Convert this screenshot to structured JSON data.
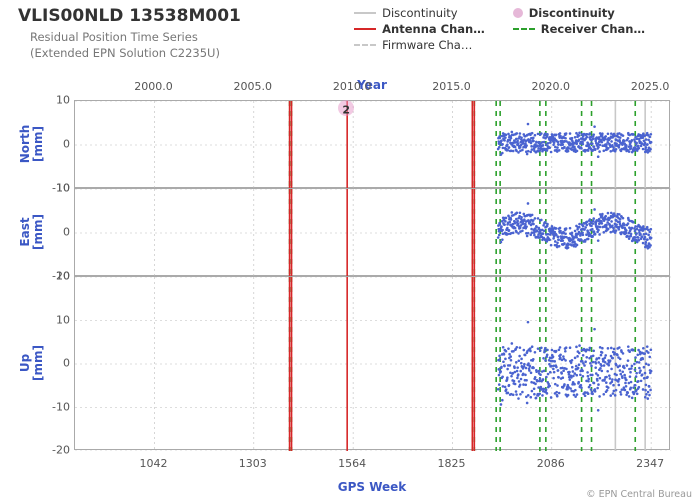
{
  "title": "VLIS00NLD 13538M001",
  "subtitle1": "Residual Position Time Series",
  "subtitle2": "(Extended EPN Solution C2235U)",
  "title_fontsize": 17,
  "title_color": "#333333",
  "subtitle_color": "#777777",
  "legend": {
    "discontinuity_line": {
      "label": "Discontinuity",
      "color": "#c8c8c8",
      "style": "solid",
      "bold": false
    },
    "antenna_change": {
      "label": "Antenna Chan…",
      "color": "#d62728",
      "style": "solid",
      "bold": true
    },
    "firmware_change": {
      "label": "Firmware Cha…",
      "color": "#c8c8c8",
      "style": "dashed",
      "bold": false
    },
    "discontinuity_dot": {
      "label": "Discontinuity",
      "color": "#e6b8d8",
      "style": "dot",
      "bold": true
    },
    "receiver_change": {
      "label": "Receiver Chan…",
      "color": "#2ca02c",
      "style": "dashed",
      "bold": true
    }
  },
  "top_axis": {
    "label": "Year",
    "ticks": [
      "2000.0",
      "2005.0",
      "2010.0",
      "2015.0",
      "2020.0",
      "2025.0"
    ],
    "min": 1996.0,
    "max": 2026.0
  },
  "bottom_axis": {
    "label": "GPS Week",
    "ticks": [
      "1042",
      "1303",
      "1564",
      "1825",
      "2086",
      "2347"
    ],
    "positions": [
      2000.0,
      2005.0,
      2010.0,
      2015.0,
      2020.0,
      2025.0
    ]
  },
  "panels": {
    "north": {
      "label": "North\n[mm]",
      "ylim": [
        -10,
        10
      ],
      "yticks": [
        -10,
        0,
        10
      ]
    },
    "east": {
      "label": "East\n[mm]",
      "ylim": [
        -10,
        10
      ],
      "yticks": [
        -10,
        0,
        10
      ]
    },
    "up": {
      "label": "Up\n[mm]",
      "ylim": [
        -20,
        20
      ],
      "yticks": [
        -20,
        -10,
        0,
        10,
        20
      ]
    }
  },
  "events": {
    "antenna_changes": [
      2006.8,
      2006.9,
      2009.7,
      2016.0,
      2016.1
    ],
    "receiver_changes": [
      2006.8,
      2006.9,
      2016.0,
      2016.1,
      2017.2,
      2017.4,
      2019.4,
      2019.7,
      2021.5,
      2022.0,
      2024.2
    ],
    "discontinuity_lines": [
      2023.2,
      2024.7
    ],
    "discontinuity_dot": {
      "x": 2009.7,
      "label": "2"
    }
  },
  "data": {
    "x_start": 2017.3,
    "x_end": 2025.0,
    "point_color": "#4a63d0",
    "point_radius": 1.3,
    "north": {
      "mean": 0.5,
      "spread": 2.2
    },
    "east": {
      "mean": 0.5,
      "spread": 2.4,
      "wave_amp": 1.8,
      "wave_period": 4.5
    },
    "up": {
      "mean": -2.0,
      "spread": 6.0
    }
  },
  "colors": {
    "background": "#ffffff",
    "grid": "#bbbbbb",
    "frame": "#aaaaaa",
    "axis_label": "#3b57c4"
  },
  "footer": "© EPN Central Bureau"
}
